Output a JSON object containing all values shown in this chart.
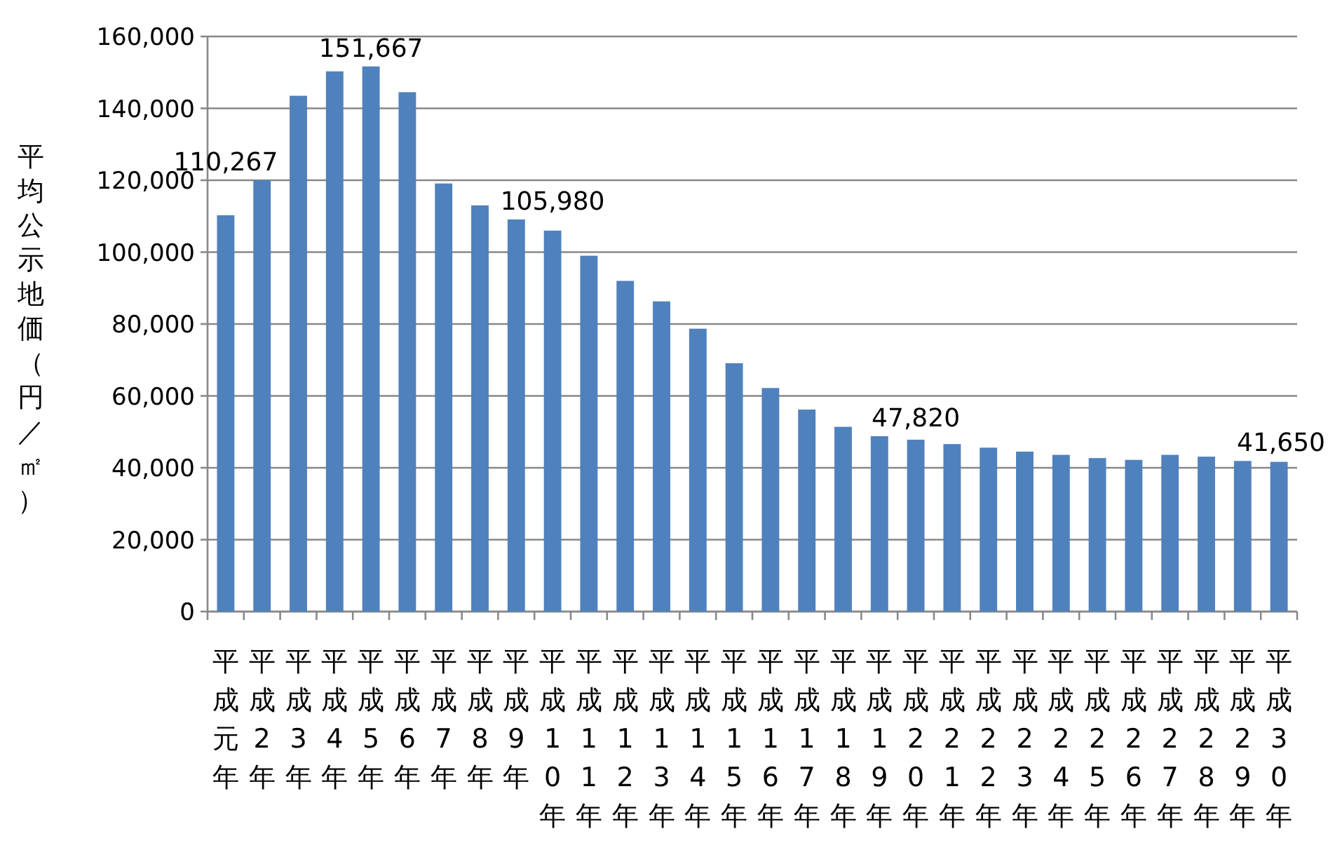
{
  "chart_data": {
    "type": "bar",
    "ylabel": "平均公示地価（円／㎡）",
    "categories": [
      "平成元年",
      "平成2年",
      "平成3年",
      "平成4年",
      "平成5年",
      "平成6年",
      "平成7年",
      "平成8年",
      "平成9年",
      "平成10年",
      "平成11年",
      "平成12年",
      "平成13年",
      "平成14年",
      "平成15年",
      "平成16年",
      "平成17年",
      "平成18年",
      "平成19年",
      "平成20年",
      "平成21年",
      "平成22年",
      "平成23年",
      "平成24年",
      "平成25年",
      "平成26年",
      "平成27年",
      "平成28年",
      "平成29年",
      "平成30年"
    ],
    "values": [
      110267,
      120000,
      143500,
      150300,
      151667,
      144500,
      119100,
      113000,
      109100,
      105980,
      99000,
      92000,
      86300,
      78700,
      69100,
      62200,
      56200,
      51400,
      48800,
      47820,
      46600,
      45600,
      44500,
      43600,
      42700,
      42200,
      43600,
      43100,
      41900,
      41650
    ],
    "value_labels": [
      "110,267",
      null,
      null,
      null,
      "151,667",
      null,
      null,
      null,
      null,
      "105,980",
      null,
      null,
      null,
      null,
      null,
      null,
      null,
      null,
      null,
      "47,820",
      null,
      null,
      null,
      null,
      null,
      null,
      null,
      null,
      null,
      "41,650"
    ],
    "color": "#4f81bd",
    "ylim": [
      0,
      160000
    ],
    "yticks": [
      {
        "value": 0,
        "label": "0"
      },
      {
        "value": 20000,
        "label": "20,000"
      },
      {
        "value": 40000,
        "label": "40,000"
      },
      {
        "value": 60000,
        "label": "60,000"
      },
      {
        "value": 80000,
        "label": "80,000"
      },
      {
        "value": 100000,
        "label": "100,000"
      },
      {
        "value": 120000,
        "label": "120,000"
      },
      {
        "value": 140000,
        "label": "140,000"
      },
      {
        "value": 160000,
        "label": "160,000"
      }
    ],
    "grid": "y"
  }
}
